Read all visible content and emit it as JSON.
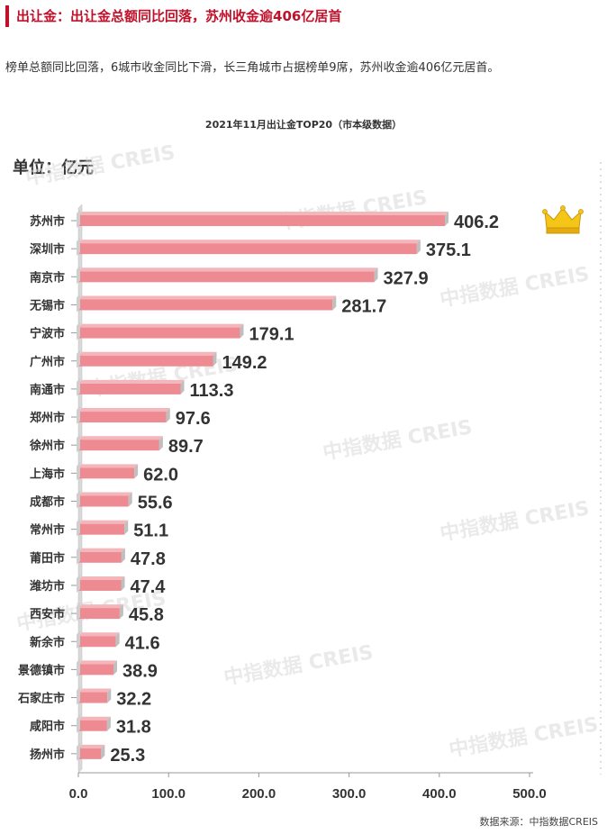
{
  "header": {
    "section_title": "出让金：出让金总额同比回落，苏州收金逾406亿居首",
    "intro": "榜单总额同比回落，6城市收金同比下滑，长三角城市占据榜单9席，苏州收金逾406亿元居首。"
  },
  "chart_data": {
    "type": "bar",
    "orientation": "horizontal",
    "title": "2021年11月出让金TOP20（市本级数据）",
    "unit_label": "单位：亿元",
    "categories": [
      "苏州市",
      "深圳市",
      "南京市",
      "无锡市",
      "宁波市",
      "广州市",
      "南通市",
      "郑州市",
      "徐州市",
      "上海市",
      "成都市",
      "常州市",
      "莆田市",
      "潍坊市",
      "西安市",
      "新余市",
      "景德镇市",
      "石家庄市",
      "咸阳市",
      "扬州市"
    ],
    "values": [
      406.2,
      375.1,
      327.9,
      281.7,
      179.1,
      149.2,
      113.3,
      97.6,
      89.7,
      62.0,
      55.6,
      51.1,
      47.8,
      47.4,
      45.8,
      41.6,
      38.9,
      32.2,
      31.8,
      25.3
    ],
    "value_labels": [
      "406.2",
      "375.1",
      "327.9",
      "281.7",
      "179.1",
      "149.2",
      "113.3",
      "97.6",
      "89.7",
      "62.0",
      "55.6",
      "51.1",
      "47.8",
      "47.4",
      "45.8",
      "41.6",
      "38.9",
      "32.2",
      "31.8",
      "25.3"
    ],
    "xlim": [
      0,
      500
    ],
    "xticks": [
      0,
      100,
      200,
      300,
      400,
      500
    ],
    "xtick_labels": [
      "0.0",
      "100.0",
      "200.0",
      "300.0",
      "400.0",
      "500.0"
    ],
    "grid": false,
    "colors": {
      "bar": "#ee8a92",
      "bar_side": "#bfbfbf",
      "label": "#333333"
    },
    "top_marker": "crown-icon",
    "watermark": "中指数据 CREIS",
    "source": "数据来源：中指数据CREIS"
  }
}
